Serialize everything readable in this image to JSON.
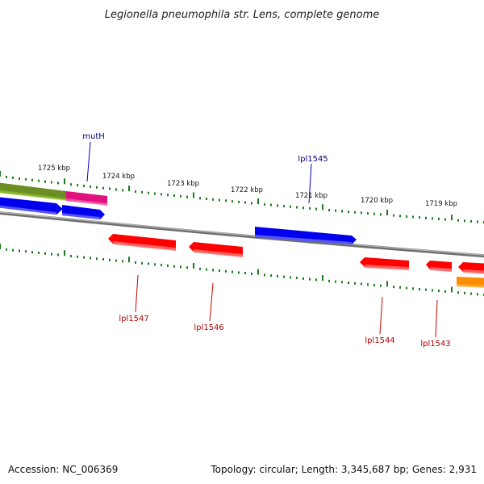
{
  "title": "Legionella pneumophila str. Lens, complete genome",
  "ticks": [
    {
      "label": "1725 kbp"
    },
    {
      "label": "1724 kbp"
    },
    {
      "label": "1723 kbp"
    },
    {
      "label": "1722 kbp"
    },
    {
      "label": "1721 kbp"
    },
    {
      "label": "1720 kbp"
    },
    {
      "label": "1719 kbp"
    }
  ],
  "genes": [
    {
      "name": "mutH",
      "color": "#0000ff"
    },
    {
      "name": "lpl1545",
      "color": "#0000ff"
    },
    {
      "name": "lpl1547",
      "color": "#ff0000"
    },
    {
      "name": "lpl1546",
      "color": "#ff0000"
    },
    {
      "name": "lpl1544",
      "color": "#ff0000"
    },
    {
      "name": "lpl1543",
      "color": "#ff0000"
    }
  ],
  "colors": {
    "forward_gene": "#0000ff",
    "reverse_gene": "#ff0000",
    "magenta_gene": "#ee1c8a",
    "olive_gene": "#6b8e23",
    "orange_gene": "#ff8c00",
    "backbone": "#808080",
    "ticks": "#1e7a1e",
    "forward_label": "#00007f",
    "reverse_label": "#b00000"
  },
  "footer": {
    "accession": "Accession: NC_006369",
    "summary": "Topology: circular; Length: 3,345,687 bp; Genes: 2,931"
  }
}
